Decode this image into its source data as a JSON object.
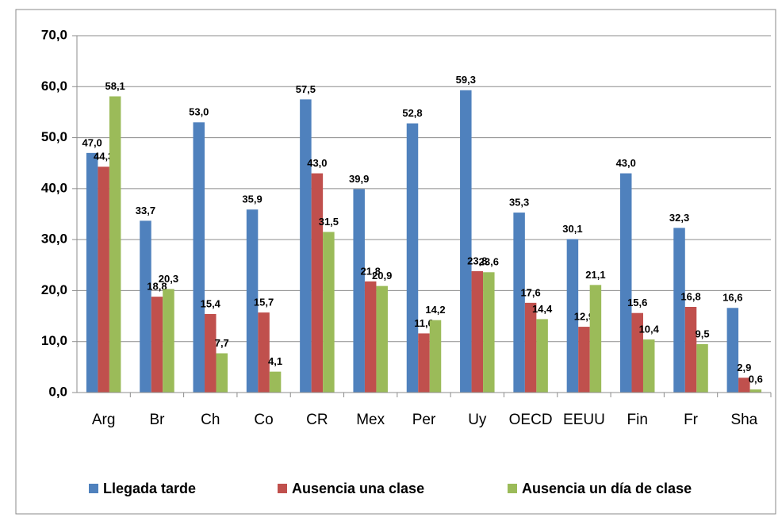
{
  "chart_data": {
    "type": "bar",
    "categories": [
      "Arg",
      "Br",
      "Ch",
      "Co",
      "CR",
      "Mex",
      "Per",
      "Uy",
      "OECD",
      "EEUU",
      "Fin",
      "Fr",
      "Sha"
    ],
    "series": [
      {
        "name": "Llegada tarde",
        "color": "#4f81bd",
        "values": [
          47.0,
          33.7,
          53.0,
          35.9,
          57.5,
          39.9,
          52.8,
          59.3,
          35.3,
          30.1,
          43.0,
          32.3,
          16.6
        ],
        "value_labels": [
          "47,0",
          "33,7",
          "53,0",
          "35,9",
          "57,5",
          "39,9",
          "52,8",
          "59,3",
          "35,3",
          "30,1",
          "43,0",
          "32,3",
          "16,6"
        ]
      },
      {
        "name": "Ausencia una clase",
        "color": "#c0504d",
        "values": [
          44.3,
          18.8,
          15.4,
          15.7,
          43.0,
          21.8,
          11.6,
          23.8,
          17.6,
          12.9,
          15.6,
          16.8,
          2.9
        ],
        "value_labels": [
          "44,3",
          "18,8",
          "15,4",
          "15,7",
          "43,0",
          "21,8",
          "11,6",
          "23,8",
          "17,6",
          "12,9",
          "15,6",
          "16,8",
          "2,9"
        ]
      },
      {
        "name": "Ausencia un día de clase",
        "color": "#9bbb59",
        "values": [
          58.1,
          20.3,
          7.7,
          4.1,
          31.5,
          20.9,
          14.2,
          23.6,
          14.4,
          21.1,
          10.4,
          9.5,
          0.6
        ],
        "value_labels": [
          "58,1",
          "20,3",
          "7,7",
          "4,1",
          "31,5",
          "20,9",
          "14,2",
          "23,6",
          "14,4",
          "21,1",
          "10,4",
          "9,5",
          "0,6"
        ]
      }
    ],
    "ylim": [
      0,
      70
    ],
    "yticks": [
      {
        "value": 0,
        "label": "0,0"
      },
      {
        "value": 10,
        "label": "10,0"
      },
      {
        "value": 20,
        "label": "20,0"
      },
      {
        "value": 30,
        "label": "30,0"
      },
      {
        "value": 40,
        "label": "40,0"
      },
      {
        "value": 50,
        "label": "50,0"
      },
      {
        "value": 60,
        "label": "60,0"
      },
      {
        "value": 70,
        "label": "70,0"
      }
    ],
    "grid": true,
    "legend": "bottom"
  }
}
